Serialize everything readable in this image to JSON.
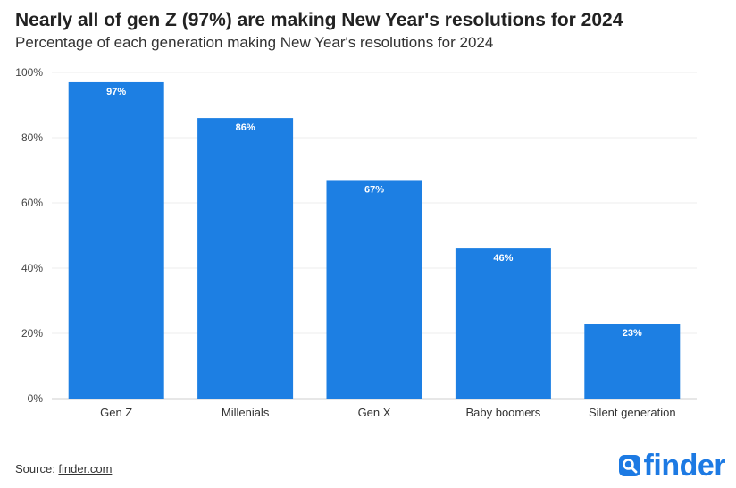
{
  "header": {
    "title": "Nearly all of gen Z (97%) are making New Year's resolutions for 2024",
    "subtitle": "Percentage of each generation making New Year's resolutions for 2024"
  },
  "chart_data": {
    "type": "bar",
    "title": "Nearly all of gen Z (97%) are making New Year's resolutions for 2024",
    "subtitle": "Percentage of each generation making New Year's resolutions for 2024",
    "categories": [
      "Gen Z",
      "Millenials",
      "Gen X",
      "Baby boomers",
      "Silent generation"
    ],
    "values": [
      97,
      86,
      67,
      46,
      23
    ],
    "value_labels": [
      "97%",
      "86%",
      "67%",
      "46%",
      "23%"
    ],
    "xlabel": "",
    "ylabel": "",
    "ylim": [
      0,
      100
    ],
    "yticks": [
      0,
      20,
      40,
      60,
      80,
      100
    ],
    "ytick_labels": [
      "0%",
      "20%",
      "40%",
      "60%",
      "80%",
      "100%"
    ],
    "grid": true,
    "bar_color": "#1d7fe3"
  },
  "footer": {
    "source_prefix": "Source: ",
    "source_link": "finder.com"
  },
  "brand": {
    "name": "finder",
    "icon": "magnifier-logo-icon",
    "color": "#1d7ae3"
  }
}
